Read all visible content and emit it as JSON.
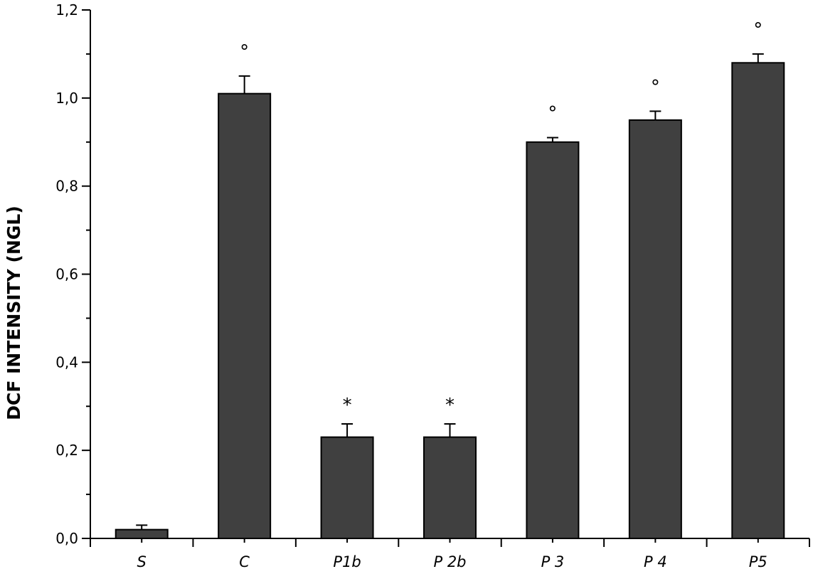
{
  "chart_data": {
    "type": "bar",
    "categories": [
      "S",
      "C",
      "P1b",
      "P 2b",
      "P 3",
      "P 4",
      "P5"
    ],
    "values": [
      0.02,
      1.01,
      0.23,
      0.23,
      0.9,
      0.95,
      1.08
    ],
    "errors": [
      0.01,
      0.04,
      0.03,
      0.03,
      0.01,
      0.02,
      0.02
    ],
    "significance_marks": [
      "",
      "°",
      "*",
      "*",
      "°",
      "°",
      "°"
    ],
    "title": "",
    "xlabel": "",
    "ylabel": "DCF INTENSITY (NGL)",
    "ylim": [
      0,
      1.2
    ],
    "yticks": [
      0.0,
      0.2,
      0.4,
      0.6,
      0.8,
      1.0,
      1.2
    ],
    "ytick_labels": [
      "0,0",
      "0,2",
      "0,4",
      "0,6",
      "0,8",
      "1,0",
      "1,2"
    ],
    "grid": false,
    "colors": {
      "bar_fill": "#404040",
      "bar_stroke": "#000000",
      "axis": "#000000"
    }
  }
}
